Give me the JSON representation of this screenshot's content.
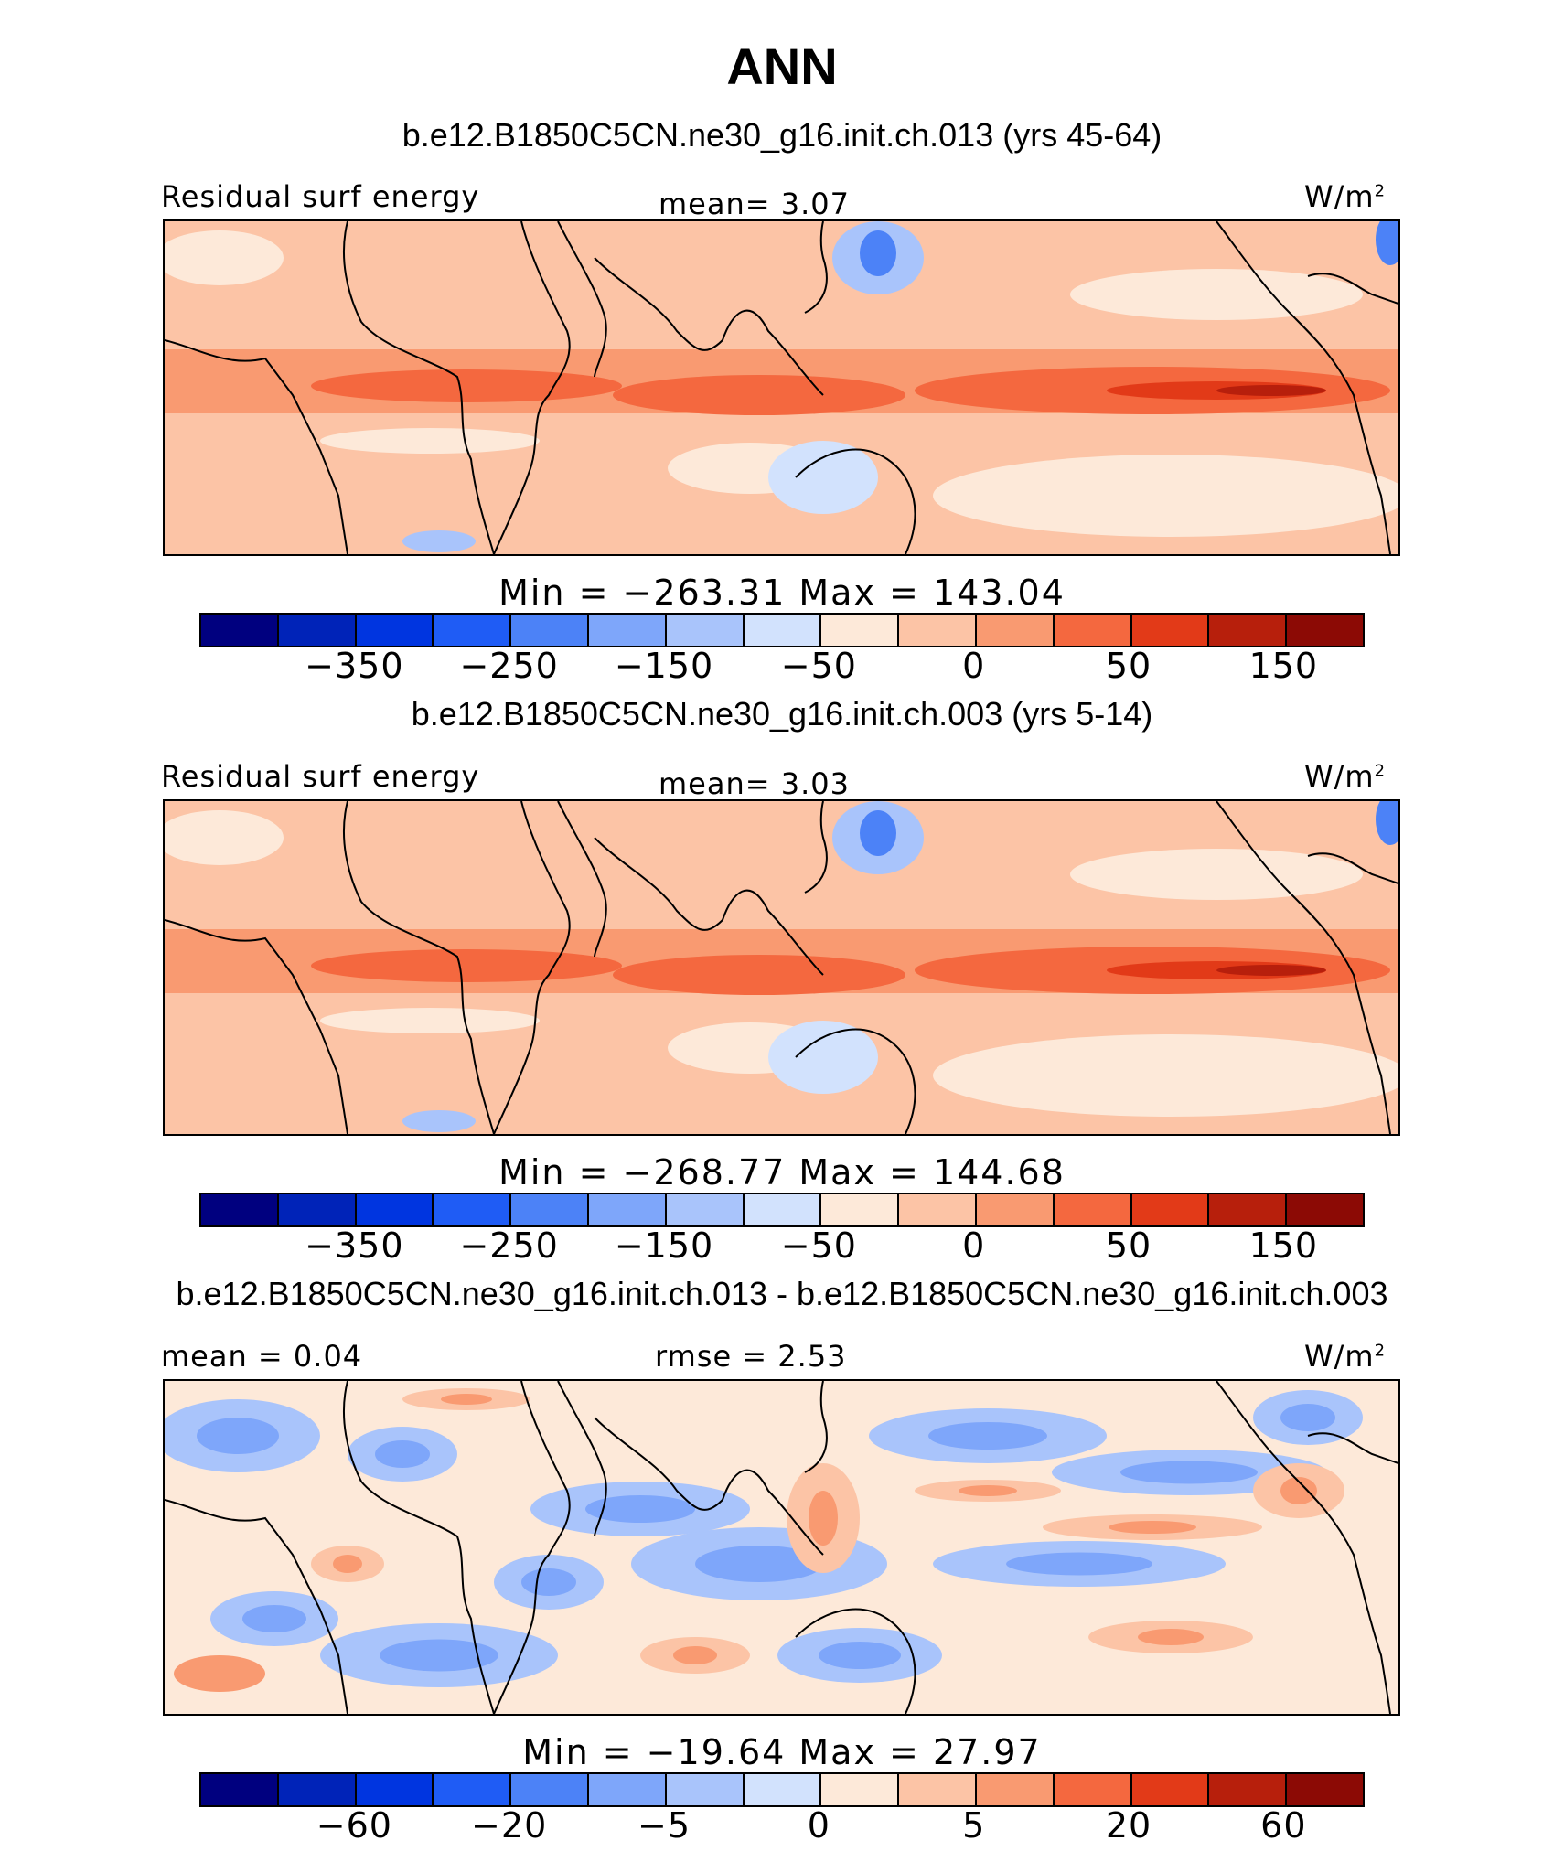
{
  "title": "ANN",
  "colors": [
    "#00007f",
    "#0023b8",
    "#0035e0",
    "#1f5cf5",
    "#4c82f7",
    "#7ea6fa",
    "#a9c4fb",
    "#d2e2fd",
    "#fde9d9",
    "#fcc4a6",
    "#f99a71",
    "#f4683f",
    "#e23a18",
    "#b71f0c",
    "#8c0a05"
  ],
  "panels": [
    {
      "case_title": "b.e12.B1850C5CN.ne30_g16.init.ch.013 (yrs 45-64)",
      "left_label": "Residual  surf  energy",
      "center_label": "mean=    3.07",
      "unit": "W/m",
      "unit_sup": "2",
      "minmax": "Min  =  −263.31  Max  =  143.04",
      "ticks": [
        "−350",
        "−250",
        "−150",
        "−50",
        "0",
        "50",
        "150"
      ],
      "style": "abs"
    },
    {
      "case_title": "b.e12.B1850C5CN.ne30_g16.init.ch.003 (yrs 5-14)",
      "left_label": "Residual  surf  energy",
      "center_label": "mean=    3.03",
      "unit": "W/m",
      "unit_sup": "2",
      "minmax": "Min  =  −268.77  Max  =  144.68",
      "ticks": [
        "−350",
        "−250",
        "−150",
        "−50",
        "0",
        "50",
        "150"
      ],
      "style": "abs"
    },
    {
      "case_title": "b.e12.B1850C5CN.ne30_g16.init.ch.013 - b.e12.B1850C5CN.ne30_g16.init.ch.003",
      "left_label": "mean  =    0.04",
      "center_label": "rmse  =    2.53",
      "unit": "W/m",
      "unit_sup": "2",
      "minmax": "Min  =  −19.64  Max  =   27.97",
      "ticks": [
        "−60",
        "−20",
        "−5",
        "0",
        "5",
        "20",
        "60"
      ],
      "style": "diff"
    }
  ]
}
